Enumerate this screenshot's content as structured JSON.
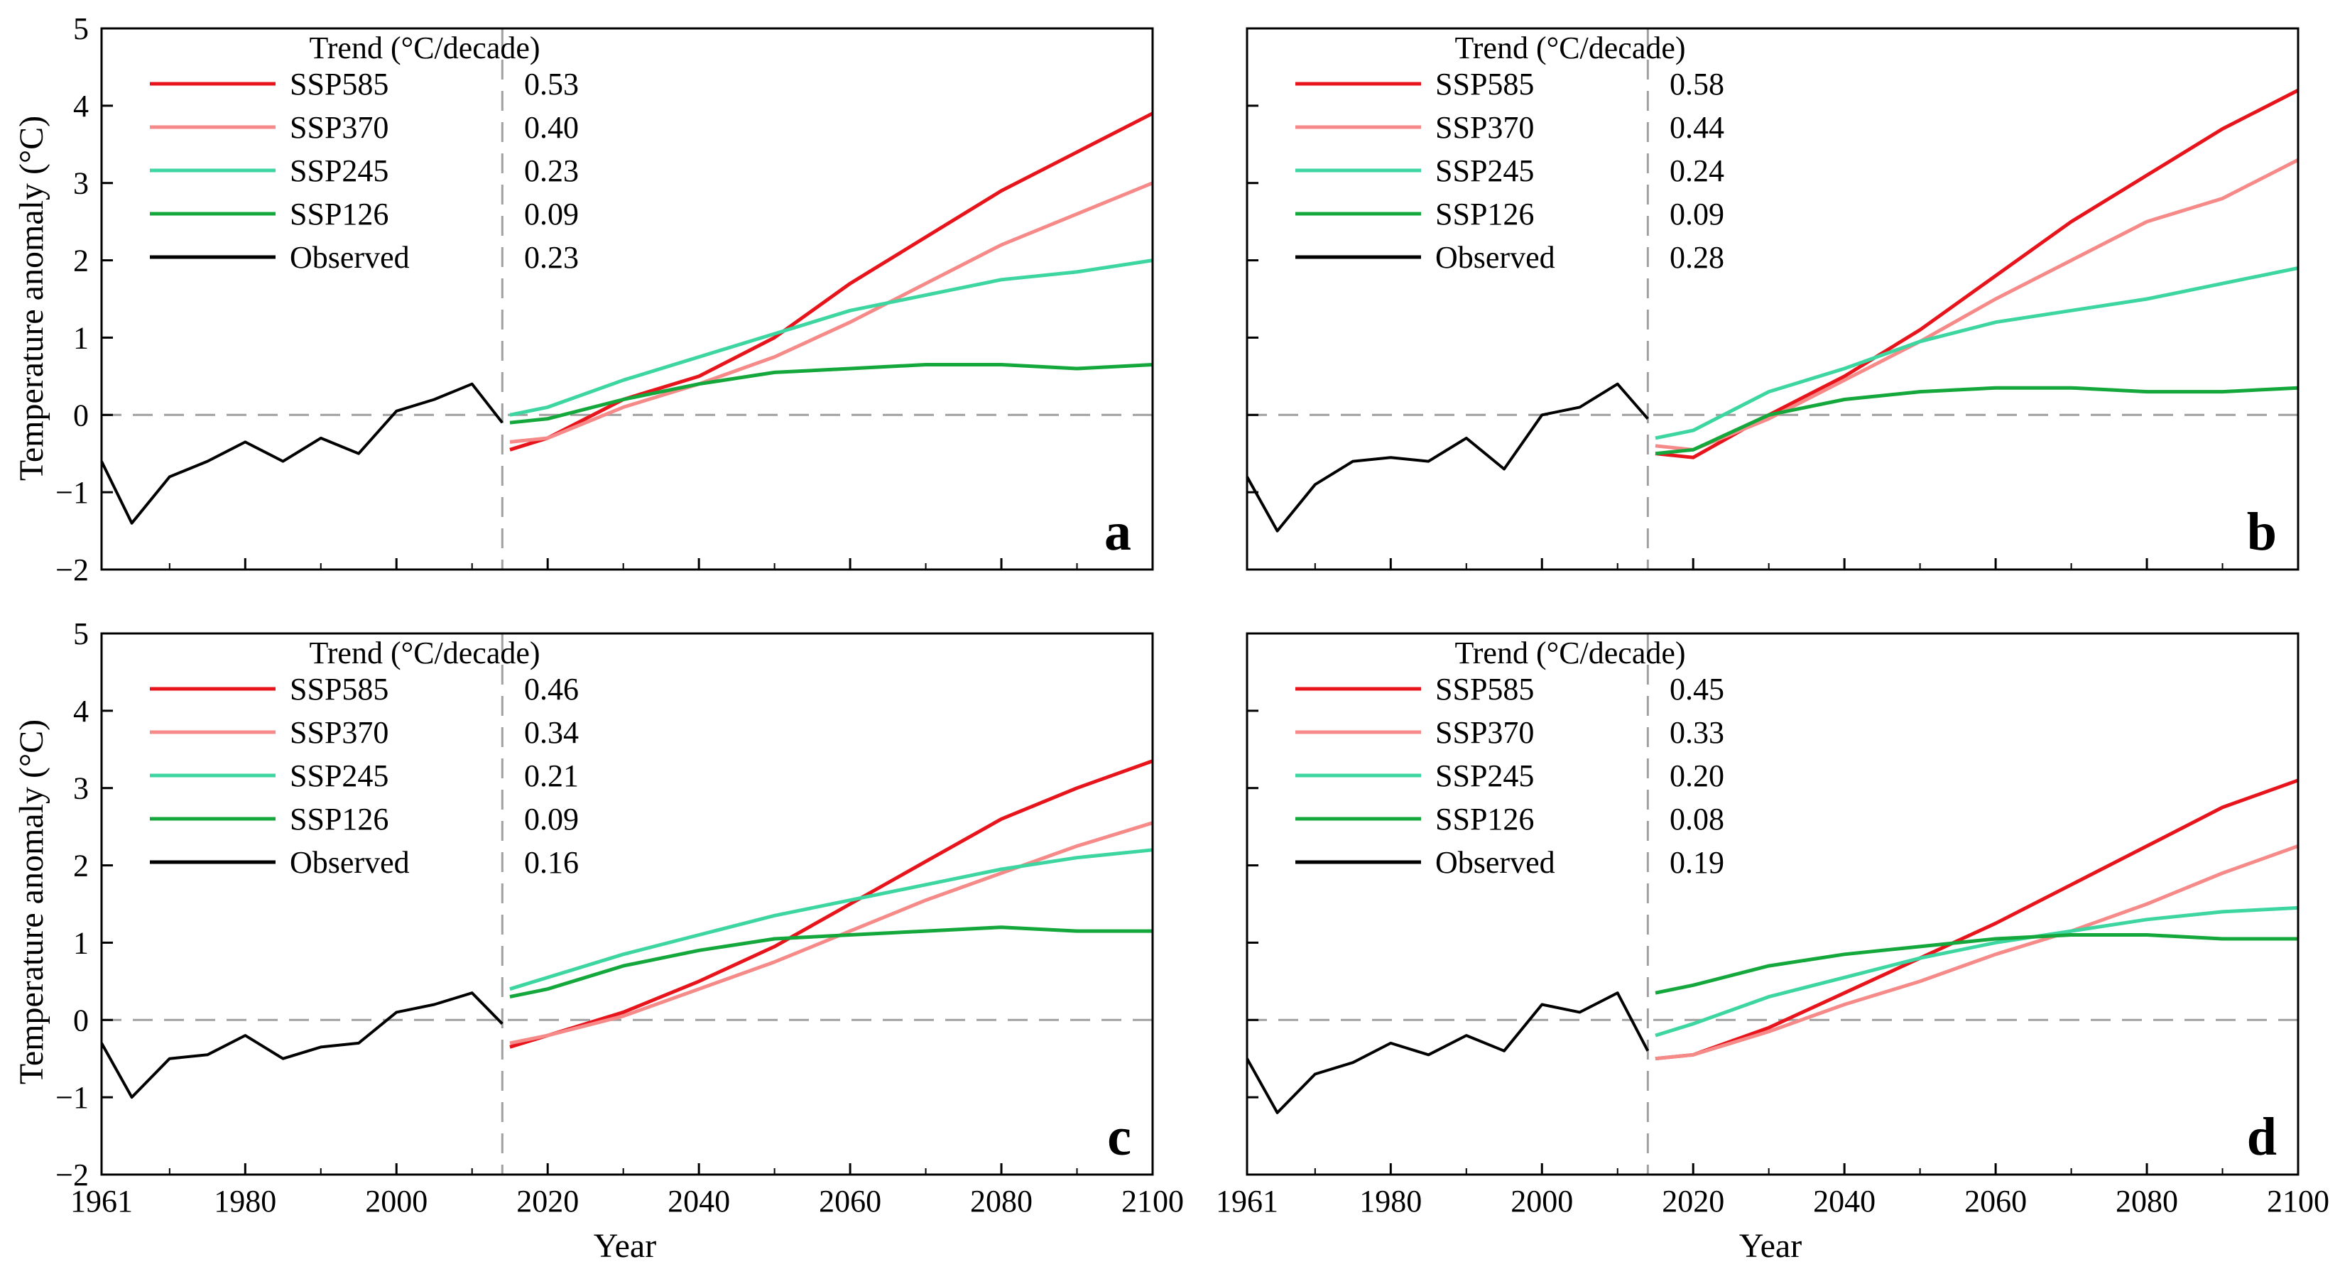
{
  "figure": {
    "ylabel": "Temperature anomaly (°C)",
    "xlabel": "Year",
    "trend_header": "Trend (°C/decade)"
  },
  "colors": {
    "SSP585": "#e8141b",
    "SSP370": "#f58a88",
    "SSP245": "#3dd6a0",
    "SSP126": "#14a83c",
    "Observed": "#000000",
    "reference": "#a0a0a0"
  },
  "chart_data": [
    {
      "type": "line",
      "panel": "a",
      "x_range": [
        1961,
        2100
      ],
      "ylim": [
        -2,
        5
      ],
      "x_ticks": [
        "1961",
        "1980",
        "2000",
        "2020",
        "2040",
        "2060",
        "2080",
        "2100"
      ],
      "y_ticks": [
        "−2",
        "−1",
        "0",
        "1",
        "2",
        "3",
        "4",
        "5"
      ],
      "reference_year": 2014,
      "zero_line": true,
      "legend": [
        {
          "name": "SSP585",
          "trend": "0.53"
        },
        {
          "name": "SSP370",
          "trend": "0.40"
        },
        {
          "name": "SSP245",
          "trend": "0.23"
        },
        {
          "name": "SSP126",
          "trend": "0.09"
        },
        {
          "name": "Observed",
          "trend": "0.23"
        }
      ],
      "series": [
        {
          "name": "Observed",
          "x": [
            1961,
            1965,
            1970,
            1975,
            1980,
            1985,
            1990,
            1995,
            2000,
            2005,
            2010,
            2014
          ],
          "y": [
            -0.6,
            -1.4,
            -0.8,
            -0.6,
            -0.35,
            -0.6,
            -0.3,
            -0.5,
            0.05,
            0.2,
            0.4,
            -0.1
          ]
        },
        {
          "name": "SSP585",
          "x": [
            2015,
            2020,
            2030,
            2040,
            2050,
            2060,
            2070,
            2080,
            2090,
            2100
          ],
          "y": [
            -0.45,
            -0.3,
            0.2,
            0.5,
            1.0,
            1.7,
            2.3,
            2.9,
            3.4,
            3.9
          ]
        },
        {
          "name": "SSP370",
          "x": [
            2015,
            2020,
            2030,
            2040,
            2050,
            2060,
            2070,
            2080,
            2090,
            2100
          ],
          "y": [
            -0.35,
            -0.3,
            0.1,
            0.4,
            0.75,
            1.2,
            1.7,
            2.2,
            2.6,
            3.0
          ]
        },
        {
          "name": "SSP245",
          "x": [
            2015,
            2020,
            2030,
            2040,
            2050,
            2060,
            2070,
            2080,
            2090,
            2100
          ],
          "y": [
            0.0,
            0.1,
            0.45,
            0.75,
            1.05,
            1.35,
            1.55,
            1.75,
            1.85,
            2.0
          ]
        },
        {
          "name": "SSP126",
          "x": [
            2015,
            2020,
            2030,
            2040,
            2050,
            2060,
            2070,
            2080,
            2090,
            2100
          ],
          "y": [
            -0.1,
            -0.05,
            0.2,
            0.4,
            0.55,
            0.6,
            0.65,
            0.65,
            0.6,
            0.65
          ]
        }
      ]
    },
    {
      "type": "line",
      "panel": "b",
      "x_range": [
        1961,
        2100
      ],
      "ylim": [
        -2,
        5
      ],
      "x_ticks": [
        "1961",
        "1980",
        "2000",
        "2020",
        "2040",
        "2060",
        "2080",
        "2100"
      ],
      "y_ticks": [
        "−2",
        "−1",
        "0",
        "1",
        "2",
        "3",
        "4",
        "5"
      ],
      "reference_year": 2014,
      "zero_line": true,
      "legend": [
        {
          "name": "SSP585",
          "trend": "0.58"
        },
        {
          "name": "SSP370",
          "trend": "0.44"
        },
        {
          "name": "SSP245",
          "trend": "0.24"
        },
        {
          "name": "SSP126",
          "trend": "0.09"
        },
        {
          "name": "Observed",
          "trend": "0.28"
        }
      ],
      "series": [
        {
          "name": "Observed",
          "x": [
            1961,
            1965,
            1970,
            1975,
            1980,
            1985,
            1990,
            1995,
            2000,
            2005,
            2010,
            2014
          ],
          "y": [
            -0.8,
            -1.5,
            -0.9,
            -0.6,
            -0.55,
            -0.6,
            -0.3,
            -0.7,
            0.0,
            0.1,
            0.4,
            -0.05
          ]
        },
        {
          "name": "SSP585",
          "x": [
            2015,
            2020,
            2030,
            2040,
            2050,
            2060,
            2070,
            2080,
            2090,
            2100
          ],
          "y": [
            -0.5,
            -0.55,
            0.0,
            0.5,
            1.1,
            1.8,
            2.5,
            3.1,
            3.7,
            4.2
          ]
        },
        {
          "name": "SSP370",
          "x": [
            2015,
            2020,
            2030,
            2040,
            2050,
            2060,
            2070,
            2080,
            2090,
            2100
          ],
          "y": [
            -0.4,
            -0.45,
            -0.05,
            0.45,
            0.95,
            1.5,
            2.0,
            2.5,
            2.8,
            3.3
          ]
        },
        {
          "name": "SSP245",
          "x": [
            2015,
            2020,
            2030,
            2040,
            2050,
            2060,
            2070,
            2080,
            2090,
            2100
          ],
          "y": [
            -0.3,
            -0.2,
            0.3,
            0.6,
            0.95,
            1.2,
            1.35,
            1.5,
            1.7,
            1.9
          ]
        },
        {
          "name": "SSP126",
          "x": [
            2015,
            2020,
            2030,
            2040,
            2050,
            2060,
            2070,
            2080,
            2090,
            2100
          ],
          "y": [
            -0.5,
            -0.45,
            0.0,
            0.2,
            0.3,
            0.35,
            0.35,
            0.3,
            0.3,
            0.35
          ]
        }
      ]
    },
    {
      "type": "line",
      "panel": "c",
      "x_range": [
        1961,
        2100
      ],
      "ylim": [
        -2,
        5
      ],
      "x_ticks": [
        "1961",
        "1980",
        "2000",
        "2020",
        "2040",
        "2060",
        "2080",
        "2100"
      ],
      "y_ticks": [
        "−2",
        "−1",
        "0",
        "1",
        "2",
        "3",
        "4",
        "5"
      ],
      "reference_year": 2014,
      "zero_line": true,
      "legend": [
        {
          "name": "SSP585",
          "trend": "0.46"
        },
        {
          "name": "SSP370",
          "trend": "0.34"
        },
        {
          "name": "SSP245",
          "trend": "0.21"
        },
        {
          "name": "SSP126",
          "trend": "0.09"
        },
        {
          "name": "Observed",
          "trend": "0.16"
        }
      ],
      "series": [
        {
          "name": "Observed",
          "x": [
            1961,
            1965,
            1970,
            1975,
            1980,
            1985,
            1990,
            1995,
            2000,
            2005,
            2010,
            2014
          ],
          "y": [
            -0.3,
            -1.0,
            -0.5,
            -0.45,
            -0.2,
            -0.5,
            -0.35,
            -0.3,
            0.1,
            0.2,
            0.35,
            -0.05
          ]
        },
        {
          "name": "SSP585",
          "x": [
            2015,
            2020,
            2030,
            2040,
            2050,
            2060,
            2070,
            2080,
            2090,
            2100
          ],
          "y": [
            -0.35,
            -0.2,
            0.1,
            0.5,
            0.95,
            1.5,
            2.05,
            2.6,
            3.0,
            3.35
          ]
        },
        {
          "name": "SSP370",
          "x": [
            2015,
            2020,
            2030,
            2040,
            2050,
            2060,
            2070,
            2080,
            2090,
            2100
          ],
          "y": [
            -0.3,
            -0.2,
            0.05,
            0.4,
            0.75,
            1.15,
            1.55,
            1.9,
            2.25,
            2.55
          ]
        },
        {
          "name": "SSP245",
          "x": [
            2015,
            2020,
            2030,
            2040,
            2050,
            2060,
            2070,
            2080,
            2090,
            2100
          ],
          "y": [
            0.4,
            0.55,
            0.85,
            1.1,
            1.35,
            1.55,
            1.75,
            1.95,
            2.1,
            2.2
          ]
        },
        {
          "name": "SSP126",
          "x": [
            2015,
            2020,
            2030,
            2040,
            2050,
            2060,
            2070,
            2080,
            2090,
            2100
          ],
          "y": [
            0.3,
            0.4,
            0.7,
            0.9,
            1.05,
            1.1,
            1.15,
            1.2,
            1.15,
            1.15
          ]
        }
      ]
    },
    {
      "type": "line",
      "panel": "d",
      "x_range": [
        1961,
        2100
      ],
      "ylim": [
        -2,
        5
      ],
      "x_ticks": [
        "1961",
        "1980",
        "2000",
        "2020",
        "2040",
        "2060",
        "2080",
        "2100"
      ],
      "y_ticks": [
        "−2",
        "−1",
        "0",
        "1",
        "2",
        "3",
        "4",
        "5"
      ],
      "reference_year": 2014,
      "zero_line": true,
      "legend": [
        {
          "name": "SSP585",
          "trend": "0.45"
        },
        {
          "name": "SSP370",
          "trend": "0.33"
        },
        {
          "name": "SSP245",
          "trend": "0.20"
        },
        {
          "name": "SSP126",
          "trend": "0.08"
        },
        {
          "name": "Observed",
          "trend": "0.19"
        }
      ],
      "series": [
        {
          "name": "Observed",
          "x": [
            1961,
            1965,
            1970,
            1975,
            1980,
            1985,
            1990,
            1995,
            2000,
            2005,
            2010,
            2014
          ],
          "y": [
            -0.5,
            -1.2,
            -0.7,
            -0.55,
            -0.3,
            -0.45,
            -0.2,
            -0.4,
            0.2,
            0.1,
            0.35,
            -0.4
          ]
        },
        {
          "name": "SSP585",
          "x": [
            2015,
            2020,
            2030,
            2040,
            2050,
            2060,
            2070,
            2080,
            2090,
            2100
          ],
          "y": [
            -0.5,
            -0.45,
            -0.1,
            0.35,
            0.8,
            1.25,
            1.75,
            2.25,
            2.75,
            3.1
          ]
        },
        {
          "name": "SSP370",
          "x": [
            2015,
            2020,
            2030,
            2040,
            2050,
            2060,
            2070,
            2080,
            2090,
            2100
          ],
          "y": [
            -0.5,
            -0.45,
            -0.15,
            0.2,
            0.5,
            0.85,
            1.15,
            1.5,
            1.9,
            2.25
          ]
        },
        {
          "name": "SSP245",
          "x": [
            2015,
            2020,
            2030,
            2040,
            2050,
            2060,
            2070,
            2080,
            2090,
            2100
          ],
          "y": [
            -0.2,
            -0.05,
            0.3,
            0.55,
            0.8,
            1.0,
            1.15,
            1.3,
            1.4,
            1.45
          ]
        },
        {
          "name": "SSP126",
          "x": [
            2015,
            2020,
            2030,
            2040,
            2050,
            2060,
            2070,
            2080,
            2090,
            2100
          ],
          "y": [
            0.35,
            0.45,
            0.7,
            0.85,
            0.95,
            1.05,
            1.1,
            1.1,
            1.05,
            1.05
          ]
        }
      ]
    }
  ]
}
